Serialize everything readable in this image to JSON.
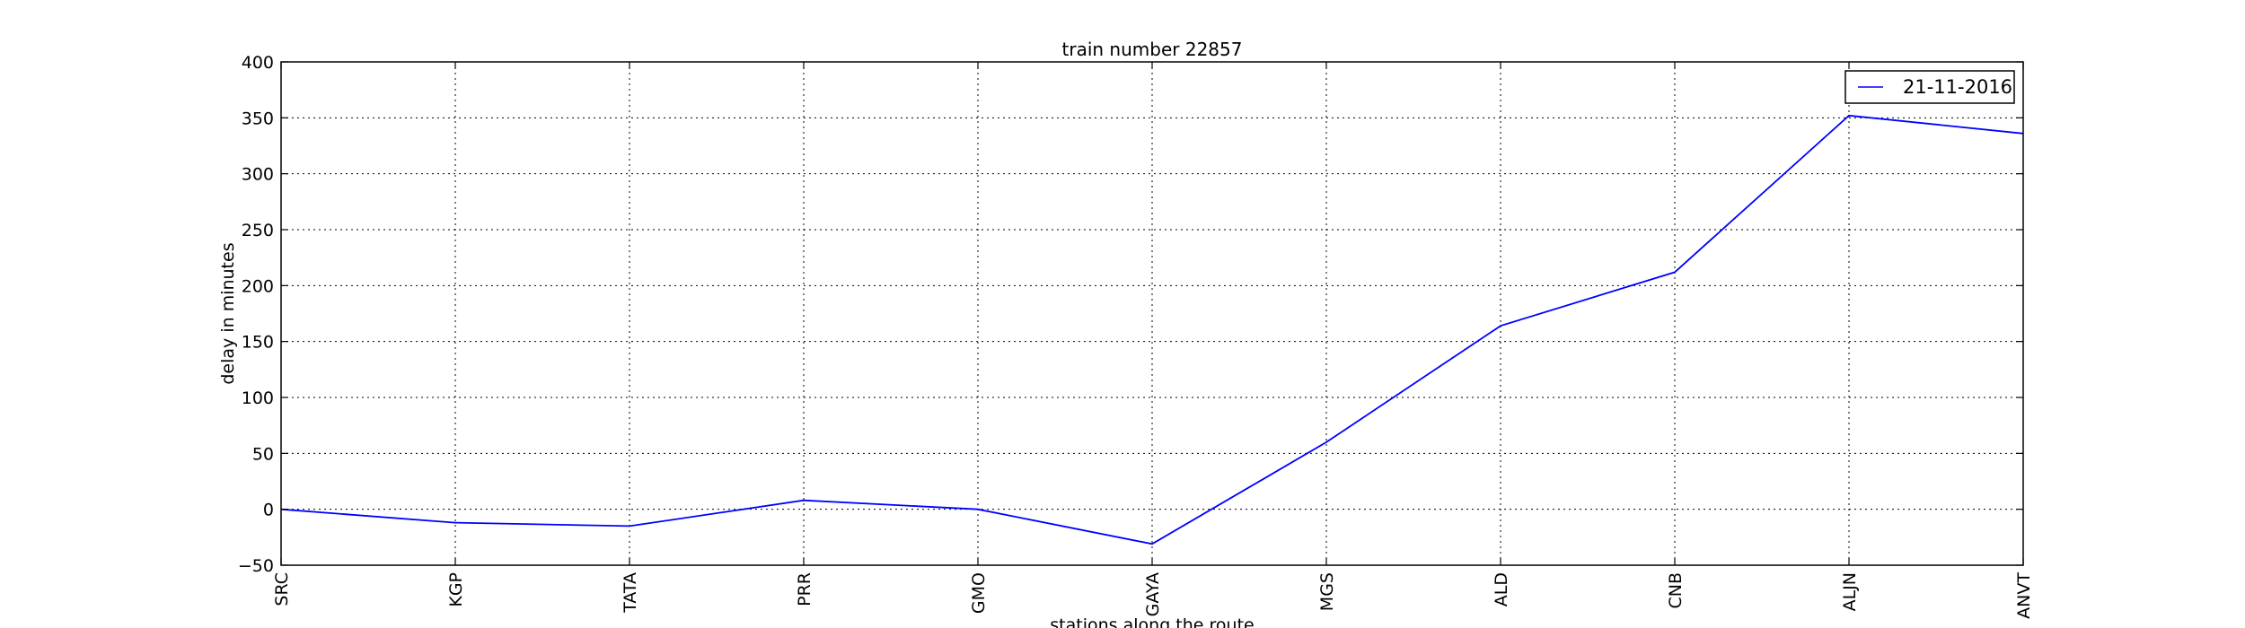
{
  "chart_data": {
    "type": "line",
    "title": "train number 22857",
    "xlabel": "stations along the route",
    "ylabel": "delay in minutes",
    "categories": [
      "SRC",
      "KGP",
      "TATA",
      "PRR",
      "GMO",
      "GAYA",
      "MGS",
      "ALD",
      "CNB",
      "ALJN",
      "ANVT"
    ],
    "series": [
      {
        "name": "21-11-2016",
        "color": "#0000ff",
        "values": [
          0,
          -12,
          -15,
          8,
          0,
          -31,
          60,
          164,
          212,
          352,
          336
        ]
      }
    ],
    "ylim": [
      -50,
      400
    ],
    "yticks": [
      -50,
      0,
      50,
      100,
      150,
      200,
      250,
      300,
      350,
      400
    ],
    "grid": true,
    "legend_position": "top-right"
  }
}
